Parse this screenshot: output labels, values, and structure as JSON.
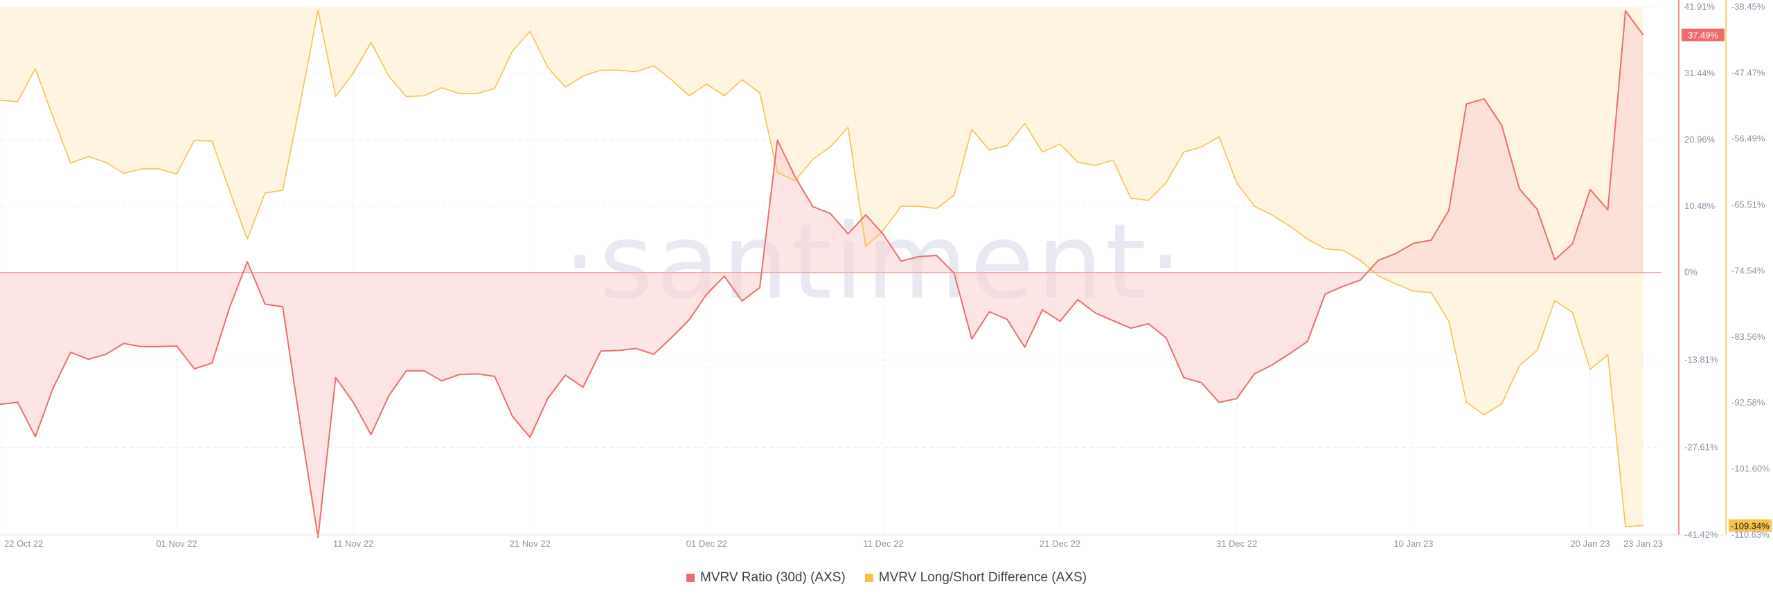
{
  "chart_data": {
    "type": "line",
    "watermark": "·santiment·",
    "x_dates": [
      "2022-10-22",
      "2022-10-23",
      "2022-10-24",
      "2022-10-25",
      "2022-10-26",
      "2022-10-27",
      "2022-10-28",
      "2022-10-29",
      "2022-10-30",
      "2022-10-31",
      "2022-11-01",
      "2022-11-02",
      "2022-11-03",
      "2022-11-04",
      "2022-11-05",
      "2022-11-06",
      "2022-11-07",
      "2022-11-08",
      "2022-11-09",
      "2022-11-10",
      "2022-11-11",
      "2022-11-12",
      "2022-11-13",
      "2022-11-14",
      "2022-11-15",
      "2022-11-16",
      "2022-11-17",
      "2022-11-18",
      "2022-11-19",
      "2022-11-20",
      "2022-11-21",
      "2022-11-22",
      "2022-11-23",
      "2022-11-24",
      "2022-11-25",
      "2022-11-26",
      "2022-11-27",
      "2022-11-28",
      "2022-11-29",
      "2022-11-30",
      "2022-12-01",
      "2022-12-02",
      "2022-12-03",
      "2022-12-04",
      "2022-12-05",
      "2022-12-06",
      "2022-12-07",
      "2022-12-08",
      "2022-12-09",
      "2022-12-10",
      "2022-12-11",
      "2022-12-12",
      "2022-12-13",
      "2022-12-14",
      "2022-12-15",
      "2022-12-16",
      "2022-12-17",
      "2022-12-18",
      "2022-12-19",
      "2022-12-20",
      "2022-12-21",
      "2022-12-22",
      "2022-12-23",
      "2022-12-24",
      "2022-12-25",
      "2022-12-26",
      "2022-12-27",
      "2022-12-28",
      "2022-12-29",
      "2022-12-30",
      "2022-12-31",
      "2023-01-01",
      "2023-01-02",
      "2023-01-03",
      "2023-01-04",
      "2023-01-05",
      "2023-01-06",
      "2023-01-07",
      "2023-01-08",
      "2023-01-09",
      "2023-01-10",
      "2023-01-11",
      "2023-01-12",
      "2023-01-13",
      "2023-01-14",
      "2023-01-15",
      "2023-01-16",
      "2023-01-17",
      "2023-01-18",
      "2023-01-19",
      "2023-01-20",
      "2023-01-21",
      "2023-01-22",
      "2023-01-23"
    ],
    "x_tick_labels": [
      {
        "date": "2022-10-22",
        "label": "22 Oct 22"
      },
      {
        "date": "2022-11-01",
        "label": "01 Nov 22"
      },
      {
        "date": "2022-11-11",
        "label": "11 Nov 22"
      },
      {
        "date": "2022-11-21",
        "label": "21 Nov 22"
      },
      {
        "date": "2022-12-01",
        "label": "01 Dec 22"
      },
      {
        "date": "2022-12-11",
        "label": "11 Dec 22"
      },
      {
        "date": "2022-12-21",
        "label": "21 Dec 22"
      },
      {
        "date": "2022-12-31",
        "label": "31 Dec 22"
      },
      {
        "date": "2023-01-10",
        "label": "10 Jan 23"
      },
      {
        "date": "2023-01-20",
        "label": "20 Jan 23"
      },
      {
        "date": "2023-01-23",
        "label": "23 Jan 23"
      }
    ],
    "x_range": [
      "2022-10-22",
      "2023-01-24"
    ],
    "y_left": {
      "ylim": [
        -41.42,
        41.91
      ],
      "ticks": [
        41.91,
        31.44,
        20.96,
        10.48,
        0,
        -13.81,
        -27.61,
        -41.42
      ],
      "tick_labels": [
        "41.91%",
        "31.44%",
        "20.96%",
        "10.48%",
        "0%",
        "-13.81%",
        "-27.61%",
        "-41.42%"
      ]
    },
    "y_right": {
      "ylim": [
        -110.63,
        -38.45
      ],
      "ticks": [
        -38.45,
        -47.47,
        -56.49,
        -65.51,
        -74.54,
        -83.56,
        -92.58,
        -101.6,
        -110.63
      ],
      "tick_labels": [
        "-38.45%",
        "-47.47%",
        "-56.49%",
        "-65.51%",
        "-74.54%",
        "-83.56%",
        "-92.58%",
        "-101.60%",
        "-110.63%"
      ]
    },
    "grid": true,
    "legend_position": "bottom-center",
    "series": [
      {
        "name": "MVRV Ratio (30d) (AXS)",
        "axis": "left",
        "color": "#f06c6c",
        "last_value_label": "37.49%",
        "values": [
          -20.8,
          -20.5,
          -25.9,
          -18.3,
          -12.6,
          -13.7,
          -12.9,
          -11.2,
          -11.7,
          -11.7,
          -11.6,
          -15.2,
          -14.3,
          -5.5,
          1.7,
          -5.0,
          -5.4,
          -24.1,
          -41.8,
          -16.6,
          -20.5,
          -25.6,
          -19.5,
          -15.5,
          -15.5,
          -17.1,
          -16.1,
          -16.0,
          -16.4,
          -22.7,
          -26.0,
          -19.9,
          -16.2,
          -18.1,
          -12.4,
          -12.3,
          -12.0,
          -12.9,
          -10.3,
          -7.5,
          -3.4,
          -0.6,
          -4.5,
          -2.4,
          20.9,
          15.1,
          10.4,
          9.3,
          6.1,
          9.1,
          6.0,
          1.8,
          2.5,
          2.7,
          -0.1,
          -10.5,
          -6.2,
          -7.4,
          -11.8,
          -5.9,
          -7.7,
          -4.3,
          -6.4,
          -7.6,
          -8.8,
          -8.1,
          -10.3,
          -16.6,
          -17.4,
          -20.5,
          -19.9,
          -16.0,
          -14.6,
          -12.8,
          -10.9,
          -3.4,
          -2.2,
          -1.2,
          1.9,
          3.0,
          4.6,
          5.1,
          9.8,
          26.6,
          27.4,
          23.2,
          13.2,
          10.0,
          2.0,
          4.5,
          13.1,
          9.9,
          41.3,
          37.49
        ]
      },
      {
        "name": "MVRV Long/Short Difference (AXS)",
        "axis": "right",
        "color": "#f5c34b",
        "last_value_label": "-109.34%",
        "values": [
          -51.2,
          -51.4,
          -46.9,
          -53.5,
          -59.8,
          -58.9,
          -59.7,
          -61.2,
          -60.6,
          -60.6,
          -61.3,
          -56.7,
          -56.8,
          -63.6,
          -70.2,
          -63.9,
          -63.5,
          -51.5,
          -38.9,
          -50.7,
          -47.5,
          -43.3,
          -47.9,
          -50.7,
          -50.6,
          -49.5,
          -50.3,
          -50.3,
          -49.6,
          -44.5,
          -41.8,
          -46.7,
          -49.4,
          -47.9,
          -47.1,
          -47.1,
          -47.3,
          -46.5,
          -48.4,
          -50.6,
          -49.0,
          -50.6,
          -48.4,
          -50.2,
          -61.1,
          -62.2,
          -59.3,
          -57.6,
          -54.9,
          -71.2,
          -69.0,
          -65.7,
          -65.7,
          -66.0,
          -64.2,
          -55.2,
          -58.0,
          -57.4,
          -54.4,
          -58.3,
          -57.2,
          -59.7,
          -60.1,
          -59.4,
          -64.6,
          -64.9,
          -62.5,
          -58.3,
          -57.6,
          -56.2,
          -62.5,
          -65.7,
          -66.9,
          -68.4,
          -70.2,
          -71.5,
          -71.7,
          -73.1,
          -75.2,
          -76.3,
          -77.3,
          -77.5,
          -81.4,
          -92.5,
          -94.2,
          -92.7,
          -87.5,
          -85.4,
          -78.6,
          -80.2,
          -88.0,
          -86.0,
          -109.5,
          -109.34
        ]
      }
    ],
    "legend": [
      {
        "label": "MVRV Ratio (30d) (AXS)",
        "color": "#f06c6c"
      },
      {
        "label": "MVRV Long/Short Difference (AXS)",
        "color": "#f5c34b"
      }
    ]
  }
}
